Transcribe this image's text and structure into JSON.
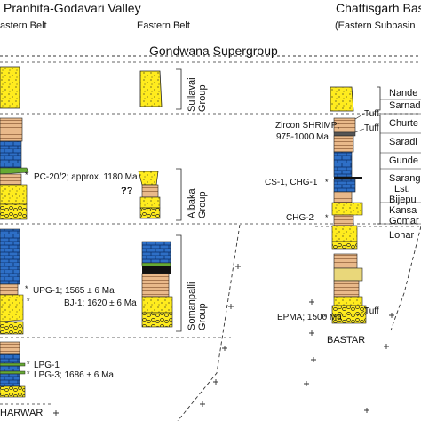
{
  "header": {
    "left_title": "Pranhita-Godavari Valley",
    "right_title": "Chattisgarh Basi",
    "left_subtitle": "astern Belt",
    "center_subtitle": "Eastern Belt",
    "right_subtitle": "(Eastern Subbasin",
    "banner": "Gondwana Supergroup"
  },
  "groups": {
    "sullavai": "Sullavai\nGroup",
    "albaka": "Albaka\nGroup",
    "somanpalli": "Somanpalli\nGroup"
  },
  "formations": {
    "nande": "Nande",
    "sarnad": "Sarnad",
    "churte": "Churte",
    "saradi": "Saradi",
    "gunde": "Gunde",
    "sarang": "Sarang",
    "lst": "Lst.",
    "bijepu": "Bijepu",
    "kansa": "Kansa",
    "gomar": "Gomar",
    "lohar": "Lohar"
  },
  "samples": {
    "pc20": "PC-20/2; approx. 1180 Ma",
    "upg1": "UPG-1; 1565 ± 6 Ma",
    "bj1": "BJ-1; 1620 ± 6 Ma",
    "lpg1": "LPG-1",
    "lpg3": "LPG-3; 1686 ± 6 Ma",
    "zircon": "Zircon SHRIMP;",
    "zircon_age": "975-1000 Ma",
    "cs1": "CS-1, CHG-1",
    "chg2": "CHG-2",
    "epma": "EPMA; 1500 Ma",
    "query": "??",
    "tuff": "Tuff"
  },
  "basement": {
    "left": "HARWAR",
    "right": "BASTAR"
  },
  "colors": {
    "sandstone": "#ffec1e",
    "shale": "#e8b888",
    "limestone": "#2c6bc4",
    "green_layer": "#66aa33",
    "dashed_line": "#333333"
  }
}
